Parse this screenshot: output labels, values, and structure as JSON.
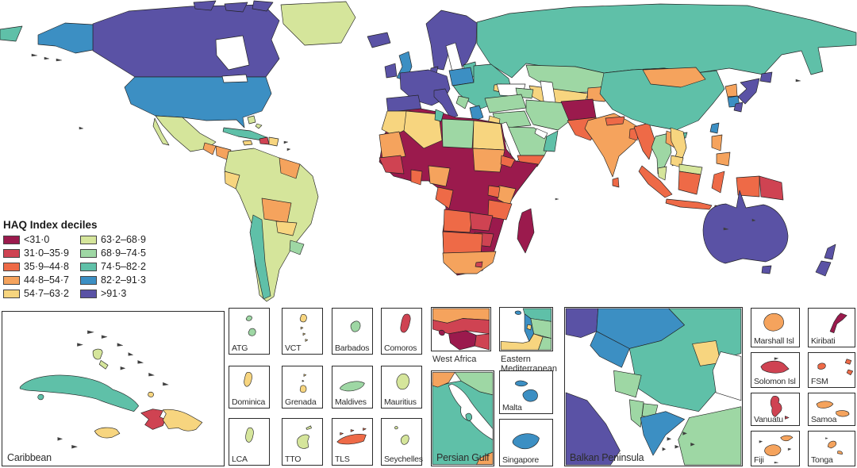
{
  "figure": {
    "kind": "choropleth world map of Healthcare Access and Quality Index"
  },
  "legend": {
    "title": "HAQ Index deciles",
    "items": [
      {
        "label": "<31·0",
        "color": "#9b1a4d"
      },
      {
        "label": "31·0–35·9",
        "color": "#cf4352"
      },
      {
        "label": "35·9–44·8",
        "color": "#ee6a47"
      },
      {
        "label": "44·8–54·7",
        "color": "#f5a35d"
      },
      {
        "label": "54·7–63·2",
        "color": "#f7d57f"
      },
      {
        "label": "63·2–68·9",
        "color": "#d5e59b"
      },
      {
        "label": "68·9–74·5",
        "color": "#9ed7a4"
      },
      {
        "label": "74·5–82·2",
        "color": "#5fc0a8"
      },
      {
        "label": "82·2–91·3",
        "color": "#3c8fc3"
      },
      {
        "label": ">91·3",
        "color": "#5a52a5"
      }
    ]
  },
  "insets": {
    "caribbean": {
      "label": "Caribbean"
    },
    "atg": {
      "label": "ATG",
      "decile": "68·9–74·5"
    },
    "vct": {
      "label": "VCT",
      "decile": "54·7–63·2"
    },
    "barbados": {
      "label": "Barbados",
      "decile": "68·9–74·5"
    },
    "comoros": {
      "label": "Comoros",
      "decile": "31·0–35·9"
    },
    "dominica": {
      "label": "Dominica",
      "decile": "54·7–63·2"
    },
    "grenada": {
      "label": "Grenada",
      "decile": "54·7–63·2"
    },
    "maldives": {
      "label": "Maldives",
      "decile": "68·9–74·5"
    },
    "mauritius": {
      "label": "Mauritius",
      "decile": "63·2–68·9"
    },
    "lca": {
      "label": "LCA",
      "decile": "63·2–68·9"
    },
    "tto": {
      "label": "TTO",
      "decile": "63·2–68·9"
    },
    "tls": {
      "label": "TLS",
      "decile": "35·9–44·8"
    },
    "seychelles": {
      "label": "Seychelles",
      "decile": "63·2–68·9"
    },
    "west_africa": {
      "label": "West Africa"
    },
    "eastern_mediterranean": {
      "label": "Eastern Mediterranean"
    },
    "persian_gulf": {
      "label": "Persian Gulf"
    },
    "malta": {
      "label": "Malta",
      "decile": "82·2–91·3"
    },
    "singapore": {
      "label": "Singapore",
      "decile": "82·2–91·3"
    },
    "balkan": {
      "label": "Balkan Peninsula"
    },
    "marshall": {
      "label": "Marshall Isl",
      "decile": "44·8–54·7"
    },
    "kiribati": {
      "label": "Kiribati",
      "decile": "<31·0"
    },
    "solomon": {
      "label": "Solomon Isl",
      "decile": "31·0–35·9"
    },
    "fsm": {
      "label": "FSM",
      "decile": "35·9–44·8"
    },
    "vanuatu": {
      "label": "Vanuatu",
      "decile": "31·0–35·9"
    },
    "samoa": {
      "label": "Samoa",
      "decile": "44·8–54·7"
    },
    "fiji": {
      "label": "Fiji",
      "decile": "44·8–54·7"
    },
    "tonga": {
      "label": "Tonga",
      "decile": "44·8–54·7"
    }
  },
  "map_regions": [
    {
      "name": "Canada",
      "decile": ">91·3"
    },
    {
      "name": "United States",
      "decile": "82·2–91·3"
    },
    {
      "name": "Greenland",
      "decile": "63·2–68·9"
    },
    {
      "name": "Mexico",
      "decile": "63·2–68·9"
    },
    {
      "name": "Central America",
      "decile": "44·8–54·7"
    },
    {
      "name": "Cuba",
      "decile": "74·5–82·2"
    },
    {
      "name": "Haiti",
      "decile": "31·0–35·9"
    },
    {
      "name": "Dominican Republic",
      "decile": "54·7–63·2"
    },
    {
      "name": "Jamaica",
      "decile": "54·7–63·2"
    },
    {
      "name": "Brazil / Colombia / Peru / Argentina",
      "decile": "63·2–68·9"
    },
    {
      "name": "Guyana / Suriname",
      "decile": "44·8–54·7"
    },
    {
      "name": "Ecuador",
      "decile": "54·7–63·2"
    },
    {
      "name": "Bolivia",
      "decile": "44·8–54·7"
    },
    {
      "name": "Paraguay",
      "decile": "54·7–63·2"
    },
    {
      "name": "Chile",
      "decile": "74·5–82·2"
    },
    {
      "name": "Uruguay",
      "decile": "68·9–74·5"
    },
    {
      "name": "Iceland / Ireland / Western Europe / Scandinavia",
      "decile": ">91·3"
    },
    {
      "name": "United Kingdom",
      "decile": "82·2–91·3"
    },
    {
      "name": "Poland",
      "decile": "82·2–91·3"
    },
    {
      "name": "Greece",
      "decile": "82·2–91·3"
    },
    {
      "name": "Eastern Europe / Russia",
      "decile": "74·5–82·2"
    },
    {
      "name": "Moldova",
      "decile": "54·7–63·2"
    },
    {
      "name": "Kazakhstan",
      "decile": "63·2–68·9"
    },
    {
      "name": "Uzbekistan / Turkmenistan",
      "decile": "54·7–63·2"
    },
    {
      "name": "Kyrgyzstan / Tajikistan",
      "decile": "44·8–54·7"
    },
    {
      "name": "Turkey / Iran / Iraq / Saudi Arabia",
      "decile": "63·2–68·9"
    },
    {
      "name": "Jordan",
      "decile": "54·7–63·2"
    },
    {
      "name": "Yemen",
      "decile": "35·9–44·8"
    },
    {
      "name": "Oman",
      "decile": "74·5–82·2"
    },
    {
      "name": "Afghanistan",
      "decile": "<31·0"
    },
    {
      "name": "Pakistan / Nepal / Bangladesh / Myanmar",
      "decile": "35·9–44·8"
    },
    {
      "name": "India",
      "decile": "44·8–54·7"
    },
    {
      "name": "China",
      "decile": "74·5–82·2"
    },
    {
      "name": "Mongolia",
      "decile": "44·8–54·7"
    },
    {
      "name": "North Korea",
      "decile": "44·8–54·7"
    },
    {
      "name": "South Korea / Taiwan",
      "decile": "82·2–91·3"
    },
    {
      "name": "Japan",
      "decile": ">91·3"
    },
    {
      "name": "Thailand",
      "decile": "63·2–68·9"
    },
    {
      "name": "Laos",
      "decile": "44·8–54·7"
    },
    {
      "name": "Vietnam / Cambodia",
      "decile": "54·7–63·2"
    },
    {
      "name": "Malaysia",
      "decile": "63·2–68·9"
    },
    {
      "name": "Indonesia",
      "decile": "35·9–44·8"
    },
    {
      "name": "Philippines",
      "decile": "44·8–54·7"
    },
    {
      "name": "Papua New Guinea",
      "decile": "31·0–35·9"
    },
    {
      "name": "Australia / New Zealand",
      "decile": ">91·3"
    },
    {
      "name": "Morocco / Algeria / Egypt",
      "decile": "54·7–63·2"
    },
    {
      "name": "Tunisia",
      "decile": "74·5–82·2"
    },
    {
      "name": "Libya",
      "decile": "63·2–68·9"
    },
    {
      "name": "Mauritania / Western Sahara",
      "decile": "44·8–54·7"
    },
    {
      "name": "Sahel (Mali, Niger, Chad)",
      "decile": "<31·0"
    },
    {
      "name": "Senegal / Guinea",
      "decile": "31·0–35·9"
    },
    {
      "name": "Ghana",
      "decile": "35·9–44·8"
    },
    {
      "name": "Nigeria / Sudan / Kenya",
      "decile": "44·8–54·7"
    },
    {
      "name": "Ethiopia / Somalia / DR Congo / CAR",
      "decile": "<31·0"
    },
    {
      "name": "Tanzania / Angola / Namibia / Botswana",
      "decile": "35·9–44·8"
    },
    {
      "name": "Zambia / Zimbabwe / Lesotho",
      "decile": "31·0–35·9"
    },
    {
      "name": "South Africa",
      "decile": "44·8–54·7"
    },
    {
      "name": "Mozambique / Madagascar",
      "decile": "<31·0"
    }
  ]
}
